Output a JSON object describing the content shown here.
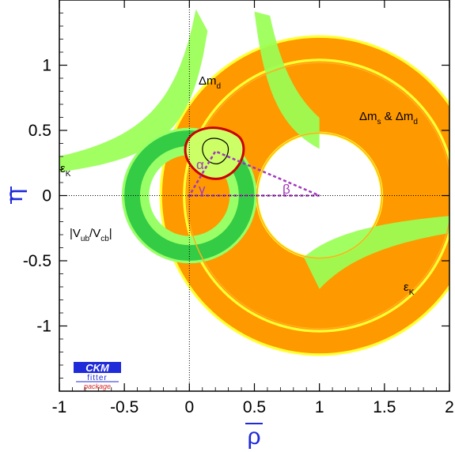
{
  "chart_data": {
    "type": "area",
    "xlabel": "ρ",
    "ylabel": "η",
    "xlim": [
      -1,
      2
    ],
    "ylim": [
      -1.5,
      1.5
    ],
    "x_ticks": [
      "-1",
      "-0.5",
      "0",
      "0.5",
      "1",
      "1.5",
      "2"
    ],
    "y_ticks": [
      "1",
      "0.5",
      "0",
      "-0.5",
      "-1"
    ],
    "x_tick_values": [
      -1,
      -0.5,
      0,
      0.5,
      1,
      1.5,
      2
    ],
    "y_tick_values": [
      1,
      0.5,
      0,
      -0.5,
      -1
    ],
    "grid": false,
    "reference_lines": {
      "x": 0,
      "y": 0
    },
    "constraints": [
      {
        "label": "Δm_d",
        "shape": "ring",
        "center": [
          1,
          0
        ],
        "r_inner": 0.66,
        "r_mid": 0.84,
        "r_outer": 1.23,
        "colors": [
          "#ffff33",
          "#ff9900"
        ]
      },
      {
        "label": "Δm_s & Δm_d",
        "shape": "ring",
        "center": [
          1,
          0
        ],
        "r_inner": 0.47,
        "r_mid": 0.49,
        "r_outer": 1.05,
        "colors": [
          "#ffff33",
          "#ff9900"
        ]
      },
      {
        "label": "|V_ub/V_cb|",
        "shape": "ring",
        "center": [
          0,
          0
        ],
        "r_inner": 0.31,
        "r_mid": 0.38,
        "r_outer": 0.52,
        "colors": [
          "#99ff66",
          "#33cc44"
        ]
      },
      {
        "label": "ε_K",
        "shape": "hyperbolic-band",
        "colors": [
          "#99ff55",
          "#66cc33"
        ]
      }
    ],
    "fit_region": {
      "best_fit": [
        0.2,
        0.34
      ],
      "contours": [
        "#cc0000",
        "#000000"
      ]
    },
    "unitarity_triangle": {
      "vertices": [
        [
          0,
          0
        ],
        [
          1,
          0
        ],
        [
          0.2,
          0.34
        ]
      ],
      "angles": [
        "α",
        "β",
        "γ"
      ],
      "color": "#a238bd"
    }
  },
  "annotations": {
    "delta_md": "Δm",
    "delta_md_sub": "d",
    "delta_ms_md_a": "Δm",
    "delta_ms_md_sub1": "s",
    "delta_ms_md_mid": " & Δm",
    "delta_ms_md_sub2": "d",
    "eps_left": "ε",
    "eps_left_sub": "K",
    "eps_right": "ε",
    "eps_right_sub": "K",
    "vub_a": "|V",
    "vub_sub1": "ub",
    "vub_b": "/V",
    "vub_sub2": "cb",
    "vub_c": "|"
  },
  "logo": {
    "line1": "CKM",
    "line2": "fitter",
    "line3": "package",
    "colors": [
      "#1f2ad8",
      "#d82a2a"
    ]
  }
}
